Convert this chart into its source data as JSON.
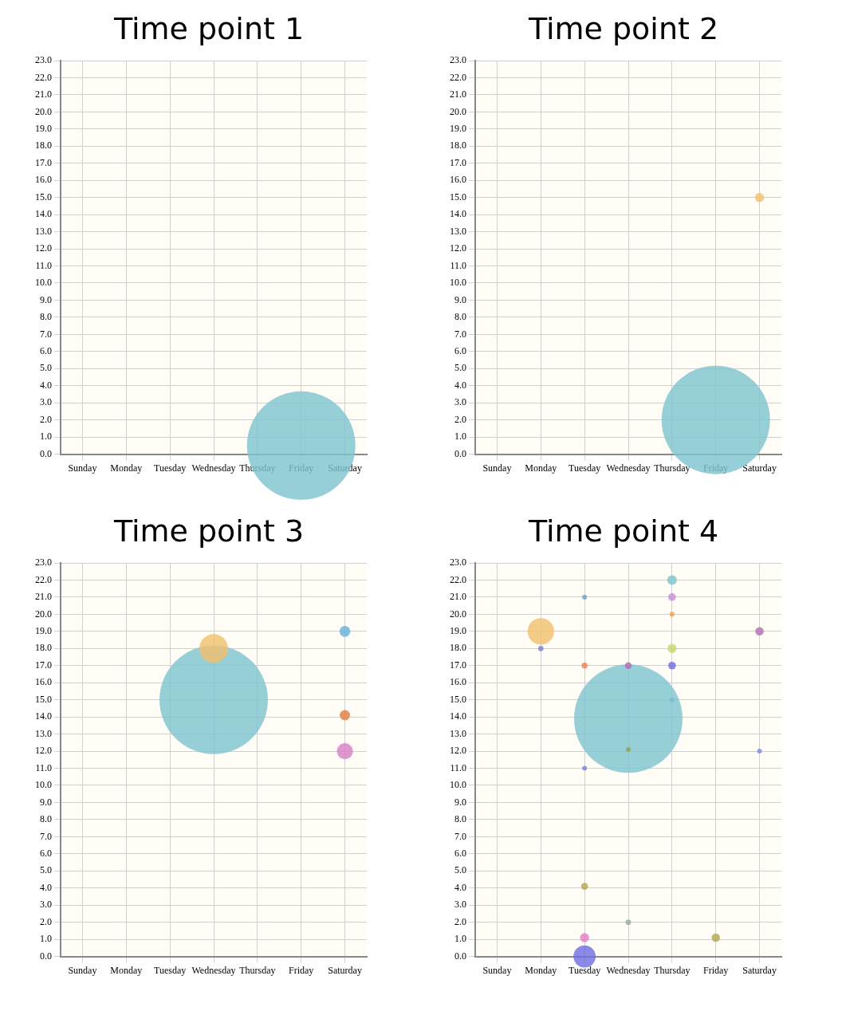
{
  "chart_data": [
    {
      "type": "bubble",
      "title": "Time point 1",
      "categories": [
        "Sunday",
        "Monday",
        "Tuesday",
        "Wednesday",
        "Thursday",
        "Friday",
        "Saturday"
      ],
      "series": [
        {
          "values": [
            null,
            null,
            null,
            null,
            null,
            0.5,
            null
          ],
          "sizes": [
            null,
            null,
            null,
            null,
            null,
            1,
            null
          ],
          "colors": [
            null,
            null,
            null,
            null,
            null,
            "#7fc4cf",
            null
          ]
        }
      ],
      "ylim": [
        0,
        23
      ],
      "yticks": [
        {
          "value": 0,
          "label": "0.0"
        },
        {
          "value": 1,
          "label": "1.0"
        },
        {
          "value": 2,
          "label": "2.0"
        },
        {
          "value": 3,
          "label": "3.0"
        },
        {
          "value": 4,
          "label": "4.0"
        },
        {
          "value": 5,
          "label": "5.0"
        },
        {
          "value": 6,
          "label": "6.0"
        },
        {
          "value": 7,
          "label": "7.0"
        },
        {
          "value": 8,
          "label": "8.0"
        },
        {
          "value": 9,
          "label": "9.0"
        },
        {
          "value": 10,
          "label": "10.0"
        },
        {
          "value": 11,
          "label": "11.0"
        },
        {
          "value": 12,
          "label": "12.0"
        },
        {
          "value": 13,
          "label": "13.0"
        },
        {
          "value": 14,
          "label": "14.0"
        },
        {
          "value": 15,
          "label": "15.0"
        },
        {
          "value": 16,
          "label": "16.0"
        },
        {
          "value": 17,
          "label": "17.0"
        },
        {
          "value": 18,
          "label": "18.0"
        },
        {
          "value": 19,
          "label": "19.0"
        },
        {
          "value": 20,
          "label": "20.0"
        },
        {
          "value": 21,
          "label": "21.0"
        },
        {
          "value": 22,
          "label": "22.0"
        },
        {
          "value": 23,
          "label": "23.0"
        }
      ],
      "grid": true
    },
    {
      "type": "bubble",
      "title": "Time point 2",
      "categories": [
        "Sunday",
        "Monday",
        "Tuesday",
        "Wednesday",
        "Thursday",
        "Friday",
        "Saturday"
      ],
      "series": [
        {
          "values": [
            null,
            null,
            null,
            null,
            null,
            2.0,
            15.0
          ],
          "sizes": [
            null,
            null,
            null,
            null,
            null,
            1,
            0.007
          ],
          "colors": [
            null,
            null,
            null,
            null,
            null,
            "#7fc4cf",
            "#f0c070"
          ]
        }
      ],
      "ylim": [
        0,
        23
      ],
      "yticks": [
        {
          "value": 0,
          "label": "0.0"
        },
        {
          "value": 1,
          "label": "1.0"
        },
        {
          "value": 2,
          "label": "2.0"
        },
        {
          "value": 3,
          "label": "3.0"
        },
        {
          "value": 4,
          "label": "4.0"
        },
        {
          "value": 5,
          "label": "5.0"
        },
        {
          "value": 6,
          "label": "6.0"
        },
        {
          "value": 7,
          "label": "7.0"
        },
        {
          "value": 8,
          "label": "8.0"
        },
        {
          "value": 9,
          "label": "9.0"
        },
        {
          "value": 10,
          "label": "10.0"
        },
        {
          "value": 11,
          "label": "11.0"
        },
        {
          "value": 12,
          "label": "12.0"
        },
        {
          "value": 13,
          "label": "13.0"
        },
        {
          "value": 14,
          "label": "14.0"
        },
        {
          "value": 15,
          "label": "15.0"
        },
        {
          "value": 16,
          "label": "16.0"
        },
        {
          "value": 17,
          "label": "17.0"
        },
        {
          "value": 18,
          "label": "18.0"
        },
        {
          "value": 19,
          "label": "19.0"
        },
        {
          "value": 20,
          "label": "20.0"
        },
        {
          "value": 21,
          "label": "21.0"
        },
        {
          "value": 22,
          "label": "22.0"
        },
        {
          "value": 23,
          "label": "23.0"
        }
      ],
      "grid": true
    },
    {
      "type": "bubble",
      "title": "Time point 3",
      "categories": [
        "Sunday",
        "Monday",
        "Tuesday",
        "Wednesday",
        "Thursday",
        "Friday",
        "Saturday"
      ],
      "series": [
        {
          "values": [
            null,
            null,
            null,
            18.0,
            null,
            null,
            19.0
          ],
          "sizes": [
            null,
            null,
            null,
            0.07,
            null,
            null,
            0.01
          ],
          "colors": [
            null,
            null,
            null,
            "#f0c070",
            null,
            null,
            "#6ab0dc"
          ]
        },
        {
          "values": [
            null,
            null,
            null,
            15.0,
            null,
            null,
            14.1
          ],
          "sizes": [
            null,
            null,
            null,
            1,
            null,
            null,
            0.009
          ],
          "colors": [
            null,
            null,
            null,
            "#7fc4cf",
            null,
            null,
            "#e08040"
          ]
        },
        {
          "values": [
            null,
            null,
            null,
            null,
            null,
            null,
            12.0
          ],
          "sizes": [
            null,
            null,
            null,
            null,
            null,
            null,
            0.022
          ],
          "colors": [
            null,
            null,
            null,
            null,
            null,
            null,
            "#d880c8"
          ]
        }
      ],
      "ylim": [
        0,
        23
      ],
      "yticks": [
        {
          "value": 0,
          "label": "0.0"
        },
        {
          "value": 1,
          "label": "1.0"
        },
        {
          "value": 2,
          "label": "2.0"
        },
        {
          "value": 3,
          "label": "3.0"
        },
        {
          "value": 4,
          "label": "4.0"
        },
        {
          "value": 5,
          "label": "5.0"
        },
        {
          "value": 6,
          "label": "6.0"
        },
        {
          "value": 7,
          "label": "7.0"
        },
        {
          "value": 8,
          "label": "8.0"
        },
        {
          "value": 9,
          "label": "9.0"
        },
        {
          "value": 10,
          "label": "10.0"
        },
        {
          "value": 11,
          "label": "11.0"
        },
        {
          "value": 12,
          "label": "12.0"
        },
        {
          "value": 13,
          "label": "13.0"
        },
        {
          "value": 14,
          "label": "14.0"
        },
        {
          "value": 15,
          "label": "15.0"
        },
        {
          "value": 16,
          "label": "16.0"
        },
        {
          "value": 17,
          "label": "17.0"
        },
        {
          "value": 18,
          "label": "18.0"
        },
        {
          "value": 19,
          "label": "19.0"
        },
        {
          "value": 20,
          "label": "20.0"
        },
        {
          "value": 21,
          "label": "21.0"
        },
        {
          "value": 22,
          "label": "22.0"
        },
        {
          "value": 23,
          "label": "23.0"
        }
      ],
      "grid": true
    },
    {
      "type": "bubble",
      "title": "Time point 4",
      "categories": [
        "Sunday",
        "Monday",
        "Tuesday",
        "Wednesday",
        "Thursday",
        "Friday",
        "Saturday"
      ],
      "series": [
        {
          "values": [
            null,
            19.0,
            17.0,
            17.0,
            22.0,
            1.1,
            19.0
          ],
          "sizes": [
            null,
            0.06,
            0.003,
            0.004,
            0.008,
            0.006,
            0.006
          ],
          "colors": [
            null,
            "#f0c070",
            "#f08050",
            "#b070b0",
            "#7fc4cf",
            "#b0a850",
            "#b070b0"
          ]
        },
        {
          "values": [
            null,
            18.0,
            21.0,
            12.1,
            21.0,
            null,
            12.0
          ],
          "sizes": [
            null,
            0.0025,
            0.002,
            0.002,
            0.005,
            null,
            0.002
          ],
          "colors": [
            null,
            "#8080d0",
            "#70a0c0",
            "#90a050",
            "#c890d8",
            null,
            "#8090d0"
          ]
        },
        {
          "values": [
            null,
            null,
            11.0,
            2.0,
            20.0,
            null,
            null
          ],
          "sizes": [
            null,
            null,
            0.002,
            0.0025,
            0.002,
            null,
            null
          ],
          "colors": [
            null,
            null,
            "#8080e0",
            "#90b0a0",
            "#f0a050",
            null,
            null
          ]
        },
        {
          "values": [
            null,
            null,
            0.0,
            13.9,
            18.0,
            null,
            null
          ],
          "sizes": [
            null,
            null,
            0.042,
            1,
            0.007,
            null,
            null
          ],
          "colors": [
            null,
            null,
            "#7070e0",
            "#7fc4cf",
            "#c8d870",
            null,
            null
          ]
        },
        {
          "values": [
            null,
            null,
            1.1,
            null,
            17.0,
            null,
            null
          ],
          "sizes": [
            null,
            null,
            0.007,
            null,
            0.005,
            null,
            null
          ],
          "colors": [
            null,
            null,
            "#e080c8",
            null,
            "#7070e0",
            null,
            null
          ]
        },
        {
          "values": [
            null,
            null,
            4.1,
            null,
            15.0,
            null,
            null
          ],
          "sizes": [
            null,
            null,
            0.004,
            null,
            0.002,
            null,
            null
          ],
          "colors": [
            null,
            null,
            "#b0a850",
            null,
            "#7080d0",
            null,
            null
          ]
        }
      ],
      "ylim": [
        0,
        23
      ],
      "yticks": [
        {
          "value": 0,
          "label": "0.0"
        },
        {
          "value": 1,
          "label": "1.0"
        },
        {
          "value": 2,
          "label": "2.0"
        },
        {
          "value": 3,
          "label": "3.0"
        },
        {
          "value": 4,
          "label": "4.0"
        },
        {
          "value": 5,
          "label": "5.0"
        },
        {
          "value": 6,
          "label": "6.0"
        },
        {
          "value": 7,
          "label": "7.0"
        },
        {
          "value": 8,
          "label": "8.0"
        },
        {
          "value": 9,
          "label": "9.0"
        },
        {
          "value": 10,
          "label": "10.0"
        },
        {
          "value": 11,
          "label": "11.0"
        },
        {
          "value": 12,
          "label": "12.0"
        },
        {
          "value": 13,
          "label": "13.0"
        },
        {
          "value": 14,
          "label": "14.0"
        },
        {
          "value": 15,
          "label": "15.0"
        },
        {
          "value": 16,
          "label": "16.0"
        },
        {
          "value": 17,
          "label": "17.0"
        },
        {
          "value": 18,
          "label": "18.0"
        },
        {
          "value": 19,
          "label": "19.0"
        },
        {
          "value": 20,
          "label": "20.0"
        },
        {
          "value": 21,
          "label": "21.0"
        },
        {
          "value": 22,
          "label": "22.0"
        },
        {
          "value": 23,
          "label": "23.0"
        }
      ],
      "grid": true
    }
  ]
}
